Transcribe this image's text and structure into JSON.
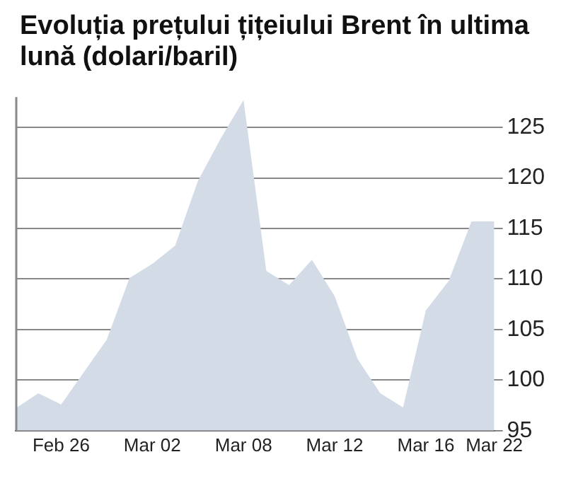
{
  "chart_data": {
    "type": "area",
    "title": "Evoluția prețului țițeiului Brent în ultima lună (dolari/baril)",
    "categories": [
      null,
      null,
      "Feb 26",
      null,
      null,
      null,
      "Mar 02",
      null,
      null,
      null,
      "Mar 08",
      null,
      null,
      null,
      "Mar 12",
      null,
      null,
      null,
      "Mar 16",
      null,
      null,
      "Mar 22"
    ],
    "values": [
      97.2,
      98.7,
      97.6,
      100.8,
      104.0,
      110.1,
      111.5,
      113.3,
      119.7,
      123.9,
      127.7,
      110.8,
      109.4,
      111.9,
      108.3,
      102.1,
      98.7,
      97.3,
      106.9,
      109.8,
      115.7,
      115.7
    ],
    "color": "#d3dbe6",
    "ylim": [
      95,
      128
    ],
    "yticks": [
      95,
      100,
      105,
      110,
      115,
      120,
      125
    ],
    "grid": "y",
    "legend": false
  }
}
